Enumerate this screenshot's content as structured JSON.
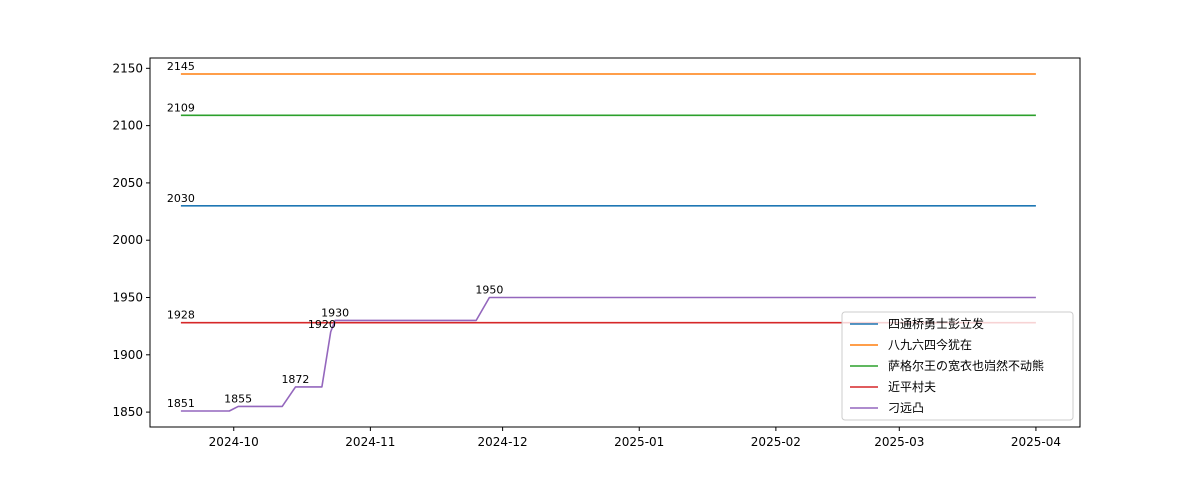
{
  "chart_data": {
    "type": "line",
    "title": "",
    "xlabel": "",
    "ylabel": "",
    "ylim": [
      1837,
      2159
    ],
    "xlim": [
      "2024-09-12",
      "2025-04-11"
    ],
    "x_ticks": [
      "2024-10",
      "2024-11",
      "2024-12",
      "2025-01",
      "2025-02",
      "2025-03",
      "2025-04"
    ],
    "y_ticks": [
      1850,
      1900,
      1950,
      2000,
      2050,
      2100,
      2150
    ],
    "grid": false,
    "legend_position": "lower-right",
    "series": [
      {
        "name": "四通桥勇士彭立发",
        "color": "#1f77b4",
        "points": [
          [
            "2024-09-19",
            2030
          ],
          [
            "2025-04-01",
            2030
          ]
        ],
        "labels": [
          {
            "x": "2024-09-19",
            "y": 2030,
            "text": "2030"
          }
        ]
      },
      {
        "name": "八九六四今犹在",
        "color": "#ff7f0e",
        "points": [
          [
            "2024-09-19",
            2145
          ],
          [
            "2025-04-01",
            2145
          ]
        ],
        "labels": [
          {
            "x": "2024-09-19",
            "y": 2145,
            "text": "2145"
          }
        ]
      },
      {
        "name": "萨格尔王の宽衣也岿然不动熊",
        "color": "#2ca02c",
        "points": [
          [
            "2024-09-19",
            2109
          ],
          [
            "2025-04-01",
            2109
          ]
        ],
        "labels": [
          {
            "x": "2024-09-19",
            "y": 2109,
            "text": "2109"
          }
        ]
      },
      {
        "name": "近平村夫",
        "color": "#d62728",
        "points": [
          [
            "2024-09-19",
            1928
          ],
          [
            "2025-04-01",
            1928
          ]
        ],
        "labels": [
          {
            "x": "2024-09-19",
            "y": 1928,
            "text": "1928"
          }
        ]
      },
      {
        "name": "刁远凸",
        "color": "#9467bd",
        "points": [
          [
            "2024-09-19",
            1851
          ],
          [
            "2024-09-30",
            1851
          ],
          [
            "2024-10-02",
            1855
          ],
          [
            "2024-10-12",
            1855
          ],
          [
            "2024-10-15",
            1872
          ],
          [
            "2024-10-21",
            1872
          ],
          [
            "2024-10-23",
            1920
          ],
          [
            "2024-10-24",
            1930
          ],
          [
            "2024-11-25",
            1930
          ],
          [
            "2024-11-28",
            1950
          ],
          [
            "2025-04-01",
            1950
          ]
        ],
        "labels": [
          {
            "x": "2024-09-19",
            "y": 1851,
            "text": "1851"
          },
          {
            "x": "2024-10-02",
            "y": 1855,
            "text": "1855"
          },
          {
            "x": "2024-10-15",
            "y": 1872,
            "text": "1872"
          },
          {
            "x": "2024-10-21",
            "y": 1920,
            "text": "1920"
          },
          {
            "x": "2024-10-24",
            "y": 1930,
            "text": "1930"
          },
          {
            "x": "2024-11-28",
            "y": 1950,
            "text": "1950"
          }
        ]
      }
    ]
  }
}
